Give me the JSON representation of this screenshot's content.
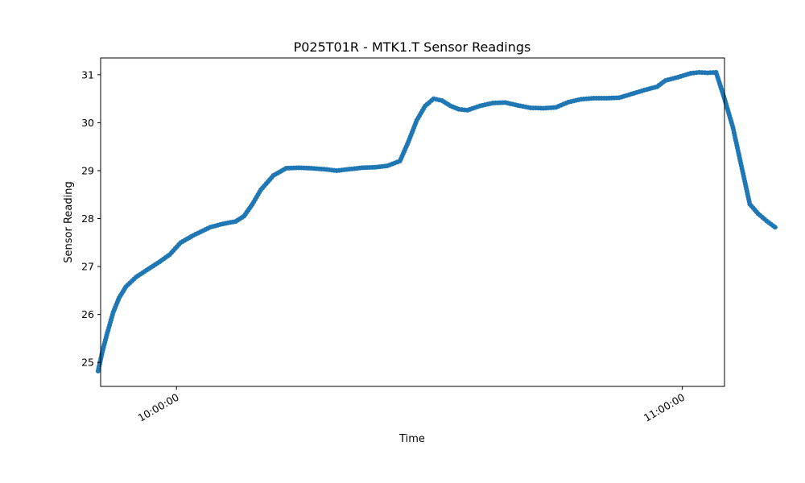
{
  "chart_data": {
    "type": "line",
    "title": "P025T01R - MTK1.T Sensor Readings",
    "xlabel": "Time",
    "ylabel": "Sensor Reading",
    "x_range_minutes": [
      9.0,
      83.0
    ],
    "ylim": [
      24.5,
      31.35
    ],
    "x_ticks": [
      {
        "label": "10:00:00",
        "minutes": 18.0
      },
      {
        "label": "11:00:00",
        "minutes": 78.0
      }
    ],
    "y_ticks": [
      25,
      26,
      27,
      28,
      29,
      30,
      31
    ],
    "grid": false,
    "color": "#1f77b4",
    "markers": "circle",
    "series": [
      {
        "values": [
          [
            -3.3,
            24.82
          ],
          [
            -2.8,
            25.22
          ],
          [
            -2.2,
            25.62
          ],
          [
            -1.5,
            26.05
          ],
          [
            -0.8,
            26.35
          ],
          [
            0.0,
            26.58
          ],
          [
            1.2,
            26.78
          ],
          [
            2.5,
            26.93
          ],
          [
            4.0,
            27.1
          ],
          [
            5.2,
            27.25
          ],
          [
            6.5,
            27.5
          ],
          [
            8.0,
            27.65
          ],
          [
            10.0,
            27.82
          ],
          [
            11.5,
            27.89
          ],
          [
            13.0,
            27.94
          ],
          [
            14.0,
            28.05
          ],
          [
            15.0,
            28.3
          ],
          [
            16.0,
            28.6
          ],
          [
            17.5,
            28.9
          ],
          [
            19.0,
            29.05
          ],
          [
            20.5,
            29.06
          ],
          [
            22.0,
            29.05
          ],
          [
            23.5,
            29.03
          ],
          [
            25.0,
            29.0
          ],
          [
            26.5,
            29.03
          ],
          [
            28.0,
            29.06
          ],
          [
            29.5,
            29.07
          ],
          [
            31.0,
            29.1
          ],
          [
            32.5,
            29.2
          ],
          [
            33.5,
            29.6
          ],
          [
            34.5,
            30.05
          ],
          [
            35.5,
            30.35
          ],
          [
            36.5,
            30.5
          ],
          [
            37.5,
            30.46
          ],
          [
            38.5,
            30.35
          ],
          [
            39.5,
            30.28
          ],
          [
            40.5,
            30.26
          ],
          [
            42.0,
            30.35
          ],
          [
            43.5,
            30.41
          ],
          [
            45.0,
            30.42
          ],
          [
            46.5,
            30.36
          ],
          [
            48.0,
            30.31
          ],
          [
            49.5,
            30.3
          ],
          [
            51.0,
            30.32
          ],
          [
            52.5,
            30.43
          ],
          [
            54.0,
            30.49
          ],
          [
            55.5,
            30.51
          ],
          [
            57.0,
            30.51
          ],
          [
            58.5,
            30.52
          ],
          [
            60.0,
            30.6
          ],
          [
            61.5,
            30.68
          ],
          [
            63.0,
            30.75
          ],
          [
            64.0,
            30.88
          ],
          [
            65.5,
            30.95
          ],
          [
            67.0,
            31.03
          ],
          [
            68.0,
            31.05
          ],
          [
            69.0,
            31.04
          ],
          [
            70.0,
            31.05
          ],
          [
            71.0,
            30.5
          ],
          [
            72.0,
            29.9
          ],
          [
            73.0,
            29.1
          ],
          [
            74.0,
            28.3
          ],
          [
            75.0,
            28.1
          ],
          [
            76.0,
            27.95
          ],
          [
            77.0,
            27.82
          ]
        ]
      }
    ]
  }
}
